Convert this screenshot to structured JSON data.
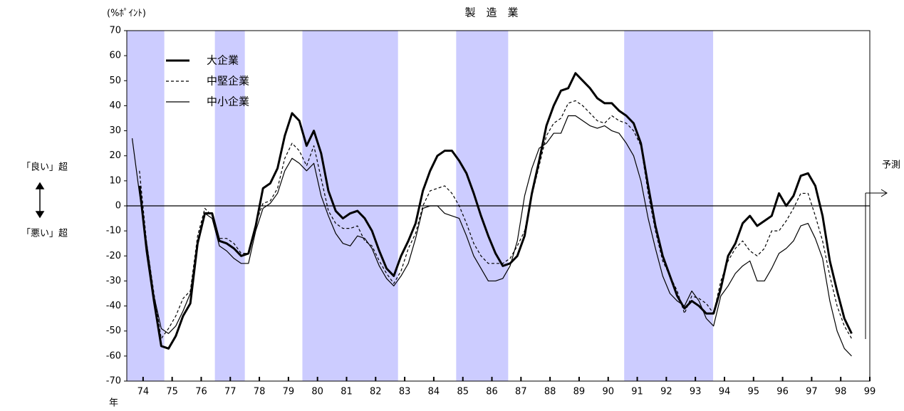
{
  "chart_data": {
    "type": "line",
    "title": "製　造　業",
    "y_unit": "(%ﾎﾟｲﾝﾄ)",
    "good_label": "「良い」超",
    "bad_label": "「悪い」超",
    "forecast_label": "予測",
    "x_unit": "年",
    "xlim": [
      73.94,
      99.5
    ],
    "ylim": [
      -70,
      70
    ],
    "yticks": [
      -70,
      -60,
      -50,
      -40,
      -30,
      -20,
      -10,
      0,
      10,
      20,
      30,
      40,
      50,
      60,
      70
    ],
    "xticks": [
      {
        "value": 74.5,
        "label": "74"
      },
      {
        "value": 75.5,
        "label": "75"
      },
      {
        "value": 76.5,
        "label": "76"
      },
      {
        "value": 77.5,
        "label": "77"
      },
      {
        "value": 78.5,
        "label": "78"
      },
      {
        "value": 79.5,
        "label": "79"
      },
      {
        "value": 80.5,
        "label": "80"
      },
      {
        "value": 81.5,
        "label": "81"
      },
      {
        "value": 82.5,
        "label": "82"
      },
      {
        "value": 83.5,
        "label": "83"
      },
      {
        "value": 84.5,
        "label": "84"
      },
      {
        "value": 85.5,
        "label": "85"
      },
      {
        "value": 86.5,
        "label": "86"
      },
      {
        "value": 87.5,
        "label": "87"
      },
      {
        "value": 88.5,
        "label": "88"
      },
      {
        "value": 89.5,
        "label": "89"
      },
      {
        "value": 90.5,
        "label": "90"
      },
      {
        "value": 91.5,
        "label": "91"
      },
      {
        "value": 92.5,
        "label": "92"
      },
      {
        "value": 93.5,
        "label": "93"
      },
      {
        "value": 94.5,
        "label": "94"
      },
      {
        "value": 95.5,
        "label": "95"
      },
      {
        "value": 96.5,
        "label": "96"
      },
      {
        "value": 97.5,
        "label": "97"
      },
      {
        "value": 98.5,
        "label": "98"
      },
      {
        "value": 99.5,
        "label": "99"
      }
    ],
    "grid": false,
    "zero_line": true,
    "shade_color": "#ccccff",
    "shaded_periods": [
      [
        73.94,
        75.23
      ],
      [
        76.97,
        78.0
      ],
      [
        79.98,
        83.27
      ],
      [
        85.27,
        87.06
      ],
      [
        91.05,
        94.11
      ]
    ],
    "x": [
      74.125,
      74.375,
      74.625,
      74.875,
      75.125,
      75.375,
      75.625,
      75.875,
      76.125,
      76.375,
      76.625,
      76.875,
      77.125,
      77.375,
      77.625,
      77.875,
      78.125,
      78.375,
      78.625,
      78.875,
      79.125,
      79.375,
      79.625,
      79.875,
      80.125,
      80.375,
      80.625,
      80.875,
      81.125,
      81.375,
      81.625,
      81.875,
      82.125,
      82.375,
      82.625,
      82.875,
      83.125,
      83.375,
      83.625,
      83.875,
      84.125,
      84.375,
      84.625,
      84.875,
      85.125,
      85.375,
      85.625,
      85.875,
      86.125,
      86.375,
      86.625,
      86.875,
      87.125,
      87.375,
      87.625,
      87.875,
      88.125,
      88.375,
      88.625,
      88.875,
      89.125,
      89.375,
      89.625,
      89.875,
      90.125,
      90.375,
      90.625,
      90.875,
      91.125,
      91.375,
      91.625,
      91.875,
      92.125,
      92.375,
      92.625,
      92.875,
      93.125,
      93.375,
      93.625,
      93.875,
      94.125,
      94.375,
      94.625,
      94.875,
      95.125,
      95.375,
      95.625,
      95.875,
      96.125,
      96.375,
      96.625,
      96.875,
      97.125,
      97.375,
      97.625,
      97.875,
      98.125,
      98.375,
      98.625,
      98.875
    ],
    "series": [
      {
        "name": "大企業",
        "color": "#000000",
        "width": 3,
        "style": "solid",
        "values": [
          null,
          8,
          -18,
          -38,
          -56,
          -57,
          -52,
          -44,
          -39,
          -15,
          -3,
          -3,
          -14,
          -15,
          -17,
          -20,
          -19,
          -8,
          7,
          9,
          15,
          28,
          37,
          34,
          24,
          30,
          21,
          6,
          -2,
          -5,
          -3,
          -2,
          -5,
          -10,
          -18,
          -25,
          -28,
          -20,
          -14,
          -7,
          6,
          14,
          20,
          22,
          22,
          18,
          13,
          5,
          -4,
          -12,
          -19,
          -24,
          -23,
          -20,
          -12,
          5,
          18,
          32,
          40,
          46,
          47,
          53,
          50,
          47,
          43,
          41,
          41,
          38,
          36,
          33,
          25,
          8,
          -8,
          -20,
          -28,
          -36,
          -41,
          -38,
          -40,
          -43,
          -43,
          -33,
          -20,
          -15,
          -7,
          -4,
          -8,
          -6,
          -4,
          5,
          0,
          4,
          12,
          13,
          8,
          -4,
          -22,
          -34,
          -45,
          -51
        ]
      },
      {
        "name": "中堅企業",
        "color": "#000000",
        "width": 1.2,
        "style": "dashed",
        "values": [
          null,
          14,
          -15,
          -35,
          -53,
          -49,
          -44,
          -37,
          -34,
          -12,
          -1,
          -4,
          -13,
          -13,
          -15,
          -19,
          -19,
          -7,
          1,
          2,
          7,
          19,
          25,
          22,
          16,
          24,
          11,
          -2,
          -7,
          -9,
          -9,
          -8,
          -14,
          -16,
          -22,
          -27,
          -31,
          -26,
          -17,
          -11,
          0,
          6,
          7,
          8,
          5,
          0,
          -7,
          -15,
          -20,
          -23,
          -23,
          -23,
          -21,
          -16,
          -10,
          4,
          16,
          28,
          33,
          35,
          41,
          42,
          40,
          37,
          34,
          33,
          36,
          34,
          33,
          30,
          24,
          5,
          -10,
          -22,
          -28,
          -34,
          -43,
          -36,
          -37,
          -39,
          -43,
          -30,
          -22,
          -17,
          -14,
          -18,
          -20,
          -17,
          -10,
          -10,
          -6,
          -1,
          5,
          5,
          -4,
          -14,
          -28,
          -40,
          -48,
          -53
        ]
      },
      {
        "name": "中小企業",
        "color": "#000000",
        "width": 1.2,
        "style": "solid",
        "values": [
          27,
          5,
          -15,
          -36,
          -49,
          -51,
          -48,
          -42,
          -35,
          -14,
          -3,
          -5,
          -16,
          -18,
          -21,
          -23,
          -23,
          -10,
          -1,
          1,
          5,
          14,
          19,
          17,
          14,
          17,
          4,
          -4,
          -11,
          -15,
          -16,
          -12,
          -13,
          -17,
          -24,
          -29,
          -32,
          -28,
          -23,
          -13,
          -1,
          0,
          0,
          -3,
          -4,
          -5,
          -12,
          -20,
          -25,
          -30,
          -30,
          -29,
          -24,
          -14,
          4,
          15,
          23,
          25,
          29,
          29,
          36,
          36,
          34,
          32,
          31,
          32,
          30,
          29,
          25,
          20,
          10,
          -5,
          -17,
          -28,
          -35,
          -38,
          -40,
          -34,
          -38,
          -45,
          -48,
          -36,
          -32,
          -27,
          -24,
          -22,
          -30,
          -30,
          -25,
          -19,
          -17,
          -14,
          -8,
          -7,
          -13,
          -21,
          -38,
          -50,
          -57,
          -60
        ]
      }
    ]
  }
}
